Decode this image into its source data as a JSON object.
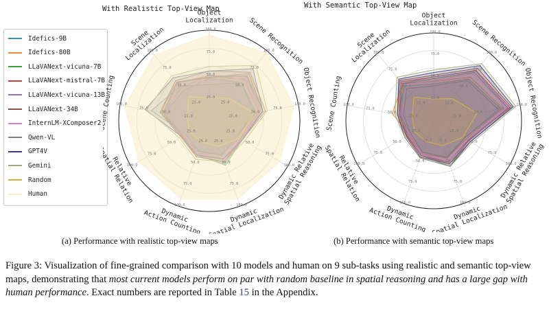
{
  "legend": [
    {
      "name": "Idefics-9B",
      "color": "#3b8fc0"
    },
    {
      "name": "Idefics-80B",
      "color": "#ef8c3a"
    },
    {
      "name": "LLaVANext-vicuna-7B",
      "color": "#3ba33b"
    },
    {
      "name": "LLaVANext-mistral-7B",
      "color": "#d13a3a"
    },
    {
      "name": "LLaVANext-vicuna-13B",
      "color": "#9a6fc4"
    },
    {
      "name": "LLaVANext-34B",
      "color": "#8a5040"
    },
    {
      "name": "InternLM-XComposer2",
      "color": "#e47ac8"
    },
    {
      "name": "Qwen-VL",
      "color": "#7f7f7f"
    },
    {
      "name": "GPT4V",
      "color": "#3a3a8c"
    },
    {
      "name": "Gemini",
      "color": "#a8a882"
    },
    {
      "name": "Random",
      "color": "#d6b23c"
    },
    {
      "name": "Human",
      "color": "#f7ecc4"
    }
  ],
  "subcaptions": {
    "a": "(a) Performance with realistic top-view maps",
    "b": "(b) Performance with semantic top-view maps"
  },
  "caption": {
    "part1": "Figure 3: Visualization of fine-grained comparison with 10 models and human on 9 sub-tasks using realistic and semantic top-view maps, demonstrating that ",
    "emph": "most current models perform on par with random baseline in spatial reasoning and has a large gap with human performance",
    "part2": ". Exact numbers are reported in Table ",
    "table_ref": "15",
    "part3": " in the Appendix."
  },
  "chart_data": [
    {
      "type": "radar",
      "title": "With Realistic Top-View Map",
      "axes": [
        "Object Localization",
        "Scene Recognition",
        "Object Recognition",
        "Dynamic Relative Spatial Reasoning",
        "Dynamic Spatial Localization",
        "Dynamic Action Counting",
        "Relative Spatial Relation",
        "Scene Counting",
        "Scene Localization"
      ],
      "tick_labels": [
        "25.0",
        "50.0",
        "75.0",
        "100.0"
      ],
      "rlim": [
        0,
        100
      ],
      "grid": true,
      "legend_position": "left",
      "series": [
        {
          "name": "Idefics-9B",
          "values": [
            47,
            55,
            52,
            35,
            40,
            36,
            33,
            50,
            44
          ]
        },
        {
          "name": "Idefics-80B",
          "values": [
            50,
            60,
            56,
            38,
            40,
            38,
            33,
            52,
            48
          ]
        },
        {
          "name": "LLaVANext-vicuna-7B",
          "values": [
            48,
            65,
            60,
            42,
            52,
            40,
            35,
            52,
            55
          ]
        },
        {
          "name": "LLaVANext-mistral-7B",
          "values": [
            48,
            68,
            60,
            40,
            48,
            42,
            34,
            55,
            56
          ]
        },
        {
          "name": "LLaVANext-vicuna-13B",
          "values": [
            50,
            64,
            58,
            42,
            50,
            40,
            35,
            50,
            55
          ]
        },
        {
          "name": "LLaVANext-34B",
          "values": [
            55,
            70,
            63,
            42,
            48,
            42,
            36,
            55,
            58
          ]
        },
        {
          "name": "InternLM-XComposer2",
          "values": [
            45,
            62,
            58,
            38,
            45,
            38,
            32,
            50,
            50
          ]
        },
        {
          "name": "Qwen-VL",
          "values": [
            40,
            55,
            50,
            35,
            40,
            35,
            30,
            65,
            50
          ]
        },
        {
          "name": "GPT4V",
          "values": [
            55,
            75,
            60,
            42,
            45,
            40,
            35,
            72,
            62
          ]
        },
        {
          "name": "Gemini",
          "values": [
            60,
            80,
            65,
            45,
            48,
            45,
            38,
            70,
            65
          ]
        },
        {
          "name": "Random",
          "values": [
            25,
            33,
            50,
            38,
            30,
            25,
            25,
            25,
            35
          ]
        },
        {
          "name": "Human",
          "values": [
            95,
            98,
            95,
            90,
            92,
            92,
            90,
            95,
            95
          ]
        }
      ]
    },
    {
      "type": "radar",
      "title": "With Semantic Top-View Map",
      "axes": [
        "Object Localization",
        "Scene Recognition",
        "Object Recognition",
        "Dynamic Relative Spatial Reasoning",
        "Dynamic Spatial Localization",
        "Dynamic Action Counting",
        "Relative Spatial Relation",
        "Scene Counting",
        "Scene Localization"
      ],
      "tick_labels": [
        "25.0",
        "50.0",
        "75.0",
        "100.0"
      ],
      "rlim": [
        0,
        100
      ],
      "grid": true,
      "series": [
        {
          "name": "Idefics-9B",
          "values": [
            40,
            60,
            75,
            40,
            45,
            38,
            30,
            35,
            48
          ]
        },
        {
          "name": "Idefics-80B",
          "values": [
            45,
            65,
            80,
            42,
            45,
            40,
            32,
            48,
            55
          ]
        },
        {
          "name": "LLaVANext-vicuna-7B",
          "values": [
            48,
            72,
            85,
            45,
            55,
            42,
            35,
            40,
            55
          ]
        },
        {
          "name": "LLaVANext-mistral-7B",
          "values": [
            50,
            75,
            88,
            45,
            50,
            42,
            35,
            40,
            58
          ]
        },
        {
          "name": "LLaVANext-vicuna-13B",
          "values": [
            50,
            74,
            86,
            46,
            52,
            42,
            34,
            38,
            56
          ]
        },
        {
          "name": "LLaVANext-34B",
          "values": [
            52,
            78,
            90,
            48,
            52,
            44,
            36,
            42,
            60
          ]
        },
        {
          "name": "InternLM-XComposer2",
          "values": [
            46,
            70,
            85,
            44,
            50,
            40,
            33,
            36,
            54
          ]
        },
        {
          "name": "Qwen-VL",
          "values": [
            42,
            62,
            78,
            40,
            44,
            38,
            30,
            40,
            52
          ]
        },
        {
          "name": "GPT4V",
          "values": [
            55,
            82,
            92,
            48,
            55,
            45,
            38,
            42,
            62
          ]
        },
        {
          "name": "Gemini",
          "values": [
            58,
            85,
            95,
            50,
            55,
            45,
            38,
            45,
            65
          ]
        },
        {
          "name": "Random",
          "values": [
            25,
            33,
            50,
            38,
            30,
            25,
            25,
            25,
            35
          ]
        }
      ]
    }
  ]
}
